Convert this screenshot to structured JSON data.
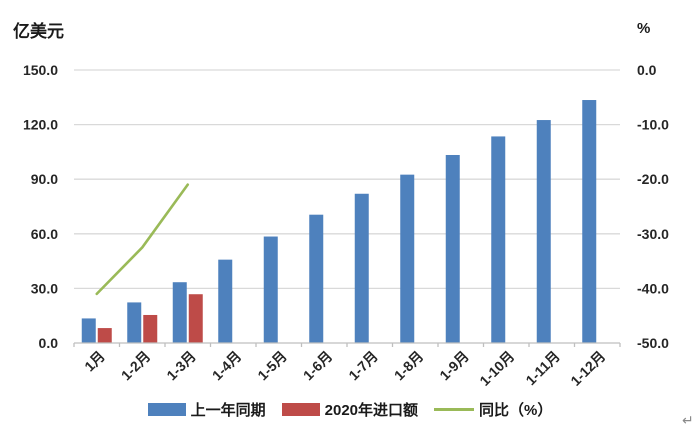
{
  "page": {
    "background": "#ffffff",
    "return_mark": "↵"
  },
  "chart_data": {
    "type": "bar",
    "title": "",
    "legend_position": "bottom",
    "grid": true,
    "gridline_color": "#d9d9d9",
    "axis_line_color": "#bfbfbf",
    "tick_label_color": "#262626",
    "left_axis": {
      "label": "亿美元",
      "range": [
        0,
        150
      ],
      "tick_values": [
        150,
        120,
        90,
        60,
        30,
        0
      ],
      "tick_labels": [
        "150.0",
        "120.0",
        "90.0",
        "60.0",
        "30.0",
        "0.0"
      ]
    },
    "right_axis": {
      "label": "%",
      "range": [
        0,
        -50
      ],
      "tick_values": [
        0,
        -10,
        -20,
        -30,
        -40,
        -50
      ],
      "tick_labels": [
        "0.0",
        "-10.0",
        "-20.0",
        "-30.0",
        "-40.0",
        "-50.0"
      ]
    },
    "categories": [
      "1月",
      "1-2月",
      "1-3月",
      "1-4月",
      "1-5月",
      "1-6月",
      "1-7月",
      "1-8月",
      "1-9月",
      "1-10月",
      "1-11月",
      "1-12月"
    ],
    "series": [
      {
        "name": "上一年同期",
        "type": "bar",
        "axis": "left",
        "color": "#4e81bd",
        "values": [
          13.5,
          22.3,
          33.4,
          45.8,
          58.5,
          70.5,
          82.0,
          92.5,
          103.3,
          113.5,
          122.5,
          133.5
        ]
      },
      {
        "name": "2020年进口额",
        "type": "bar",
        "axis": "left",
        "color": "#be4b48",
        "values": [
          8.2,
          15.4,
          26.8,
          null,
          null,
          null,
          null,
          null,
          null,
          null,
          null,
          null
        ]
      },
      {
        "name": "同比（%）",
        "type": "line",
        "axis": "right",
        "color": "#9aba58",
        "values": [
          -41.0,
          -32.5,
          -21.0,
          null,
          null,
          null,
          null,
          null,
          null,
          null,
          null,
          null
        ]
      }
    ]
  }
}
